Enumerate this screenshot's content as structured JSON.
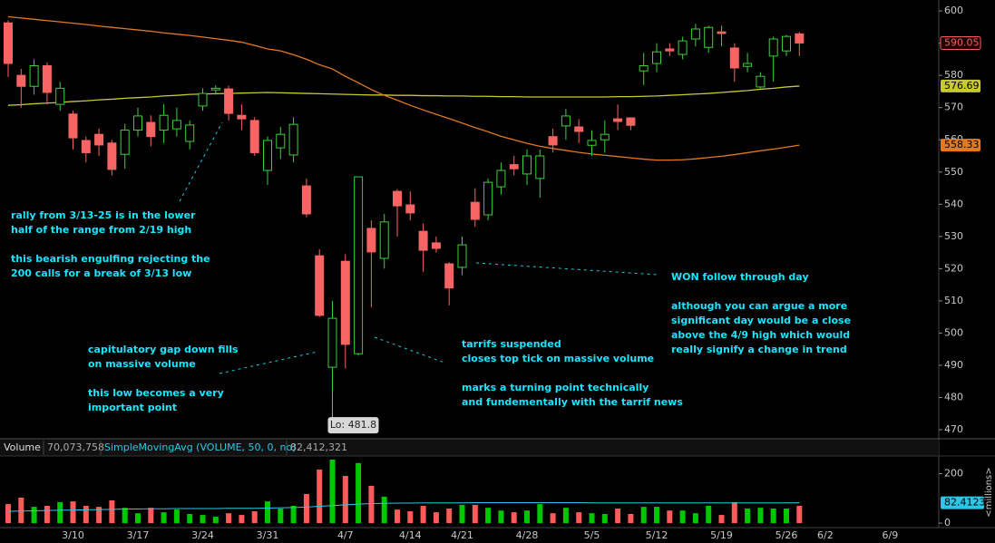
{
  "chart_data": [
    {
      "type": "candlestick",
      "categories": [
        null,
        null,
        null,
        null,
        null,
        "3/10",
        null,
        null,
        null,
        null,
        "3/17",
        null,
        null,
        null,
        null,
        "3/24",
        null,
        null,
        null,
        null,
        "3/31",
        null,
        null,
        null,
        null,
        null,
        "4/7",
        null,
        null,
        null,
        null,
        "4/14",
        null,
        null,
        null,
        "4/21",
        null,
        null,
        null,
        null,
        "4/28",
        null,
        null,
        null,
        null,
        "5/5",
        null,
        null,
        null,
        null,
        "5/12",
        null,
        null,
        null,
        null,
        "5/19",
        null,
        null,
        null,
        null,
        "5/26",
        null,
        null,
        "6/2",
        null,
        null,
        null,
        null,
        "6/9",
        null
      ],
      "open": [
        596.3,
        580,
        576.6,
        583,
        571,
        568,
        559.8,
        561.7,
        559,
        555.5,
        563,
        565.4,
        563,
        563.4,
        559.5,
        570.5,
        575.5,
        575.8,
        567.6,
        566,
        550.5,
        557.5,
        555.3,
        545.7,
        524,
        489.4,
        522.3,
        493.6,
        532.5,
        523.2,
        544,
        539.8,
        531.6,
        528,
        521.5,
        520.4,
        540.6,
        536.7,
        545.4,
        552.3,
        549.4,
        548,
        561,
        564.3,
        564,
        558.3,
        560,
        566.5,
        566.8,
        581.4,
        583.7,
        588.2,
        586.5,
        591.3,
        588.7,
        593.5,
        588.5,
        582.8,
        576.4,
        586,
        587.6,
        592.9,
        null,
        null,
        null,
        null,
        null,
        null,
        null,
        null
      ],
      "high": [
        597,
        582,
        585,
        584,
        578,
        569,
        561,
        563.5,
        560,
        565,
        570,
        567.6,
        571,
        570,
        566,
        576,
        577,
        576.8,
        571,
        567,
        561,
        564,
        567,
        548,
        526,
        510,
        524.5,
        548.5,
        535,
        537,
        544.7,
        544,
        534,
        530,
        522,
        530,
        545,
        548,
        553,
        555,
        557,
        557,
        563.5,
        569.6,
        566.4,
        563,
        566,
        571,
        567,
        587,
        590,
        590,
        592,
        596,
        595.4,
        595.4,
        590,
        587,
        581,
        592,
        592.6,
        593.5,
        null,
        null,
        null,
        null,
        null,
        null,
        null,
        null
      ],
      "low": [
        579.5,
        570,
        574,
        571,
        569,
        557,
        553,
        555,
        549,
        551,
        561,
        558,
        559,
        561,
        557,
        569,
        574,
        566,
        563,
        555,
        546,
        554,
        553,
        536,
        505,
        481.8,
        489,
        493,
        508,
        520,
        530,
        535,
        519,
        525,
        508.6,
        518,
        533,
        535,
        543,
        549,
        546,
        542,
        556,
        560,
        559,
        555,
        556,
        563,
        563,
        577,
        581,
        586,
        585,
        589,
        587,
        589,
        578,
        581,
        576,
        578,
        586,
        586,
        null,
        null,
        null,
        null,
        null,
        null,
        null,
        null
      ],
      "close": [
        583.7,
        576.6,
        583,
        574.7,
        576,
        560.6,
        556,
        558.4,
        550.8,
        563,
        567.4,
        561,
        567.6,
        566,
        564.6,
        574.4,
        576,
        568.2,
        566.5,
        556,
        559.8,
        561.7,
        564.8,
        537,
        505.5,
        504.6,
        496.5,
        548.5,
        525.2,
        534.5,
        539.5,
        537.3,
        525.7,
        526.3,
        514,
        527.4,
        535.3,
        546.8,
        550.5,
        551,
        555,
        555,
        558.4,
        567.4,
        562.6,
        559.8,
        561.7,
        565.7,
        564.5,
        583,
        587.3,
        587.6,
        590.7,
        594.4,
        594.9,
        593,
        582.3,
        583.7,
        579.7,
        591.3,
        592.1,
        590.05,
        null,
        null,
        null,
        null,
        null,
        null,
        null,
        null
      ],
      "up_color": "#3ccf3c",
      "down_color": "#f76464",
      "overlays": [
        {
          "color": "#c8c832",
          "values": [
            570.7,
            570.9,
            571.2,
            571.4,
            571.6,
            571.9,
            572.1,
            572.4,
            572.6,
            572.9,
            573.1,
            573.3,
            573.6,
            573.8,
            574.1,
            574.2,
            574.3,
            574.4,
            574.5,
            574.6,
            574.7,
            574.6,
            574.5,
            574.4,
            574.3,
            574.2,
            574.1,
            574.0,
            573.9,
            573.9,
            573.8,
            573.8,
            573.7,
            573.7,
            573.6,
            573.6,
            573.5,
            573.5,
            573.4,
            573.4,
            573.3,
            573.3,
            573.3,
            573.3,
            573.3,
            573.3,
            573.3,
            573.4,
            573.4,
            573.5,
            573.6,
            573.8,
            574.0,
            574.2,
            574.4,
            574.7,
            575.0,
            575.3,
            575.7,
            576.0,
            576.4,
            576.69,
            null,
            null,
            null,
            null,
            null,
            null,
            null,
            null
          ]
        },
        {
          "color": "#e07a22",
          "values": [
            598.2,
            597.8,
            597.4,
            597,
            596.6,
            596.2,
            595.8,
            595.3,
            594.9,
            594.5,
            594.1,
            593.7,
            593.2,
            592.8,
            592.4,
            591.9,
            591.4,
            590.9,
            590.3,
            589.3,
            588.2,
            587.6,
            586.4,
            585,
            583.3,
            582,
            579.7,
            577.7,
            575.6,
            573.8,
            572.3,
            570.7,
            569.3,
            567.9,
            566.6,
            565.2,
            563.8,
            562.5,
            561.1,
            560,
            558.9,
            558,
            557.3,
            556.7,
            556.1,
            555.6,
            555.2,
            554.8,
            554.4,
            554,
            553.7,
            553.7,
            553.8,
            554.1,
            554.5,
            554.9,
            555.4,
            556,
            556.6,
            557.1,
            557.7,
            558.33,
            null,
            null,
            null,
            null,
            null,
            null,
            null,
            null
          ]
        }
      ],
      "ylim": [
        467.2,
        603.4
      ],
      "yticks": [
        470,
        480,
        490,
        500,
        510,
        520,
        530,
        540,
        550,
        560,
        570,
        580,
        590,
        600
      ],
      "low_label": "Lo: 481.8",
      "annotations": [
        {
          "lines": [
            "rally from 3/13-25 is in the lower",
            "half of the range from 2/19 high"
          ]
        },
        {
          "lines": [
            "this bearish engulfing rejecting the",
            "200 calls for a break of 3/13 low"
          ]
        },
        {
          "lines": [
            "capitulatory gap down fills",
            "on massive volume"
          ]
        },
        {
          "lines": [
            "this low becomes a very",
            "important point"
          ]
        },
        {
          "lines": [
            "tarrifs suspended",
            "closes top tick on massive volume"
          ]
        },
        {
          "lines": [
            "marks a turning point technically",
            "and fundementally with the tarrif news"
          ]
        },
        {
          "lines": [
            "WON follow through day"
          ]
        },
        {
          "lines": [
            "although you can argue a more",
            "significant day would be a close",
            "above the 4/9 high which would",
            "really signify a change in trend"
          ]
        }
      ]
    },
    {
      "type": "bar",
      "title": "Volume",
      "title_value": "70,073,758",
      "values": [
        77,
        103,
        66,
        70,
        85,
        88,
        70,
        66,
        92,
        62,
        40,
        62,
        44,
        55,
        37,
        33,
        26,
        40,
        33,
        48,
        88,
        59,
        70,
        118,
        217,
        257,
        191,
        243,
        151,
        107,
        55,
        48,
        70,
        44,
        59,
        74,
        74,
        62,
        51,
        44,
        51,
        77,
        40,
        62,
        44,
        40,
        37,
        59,
        37,
        66,
        66,
        51,
        51,
        40,
        70,
        33,
        85,
        59,
        62,
        59,
        59,
        70.073758,
        null,
        null,
        null,
        null,
        null,
        null,
        null,
        null
      ],
      "up_color": "#00c800",
      "down_color": "#ff5a5a",
      "series": [
        {
          "name": "SimpleMovingAvg (VOLUME, 50, 0, no)",
          "name_value": "82,412,321",
          "color": "#2ac8e6",
          "values": [
            48,
            49,
            50,
            51,
            52,
            53,
            54,
            55,
            56,
            57,
            57,
            58,
            58,
            59,
            59,
            59,
            59,
            60,
            60,
            60,
            61,
            62,
            63,
            65,
            68,
            71,
            74,
            77,
            79,
            80,
            81,
            81,
            82,
            82,
            82,
            82,
            83,
            83,
            83,
            83,
            83,
            83,
            83,
            83,
            83,
            82,
            82,
            82,
            82,
            82,
            82,
            82,
            82,
            82,
            82,
            82,
            82,
            82,
            82,
            82,
            82,
            82.4123,
            null,
            null,
            null,
            null,
            null,
            null,
            null,
            null
          ]
        }
      ],
      "ylim": [
        -18,
        268
      ],
      "yticks": [
        0,
        200
      ],
      "y_unit": "<millions>"
    }
  ]
}
